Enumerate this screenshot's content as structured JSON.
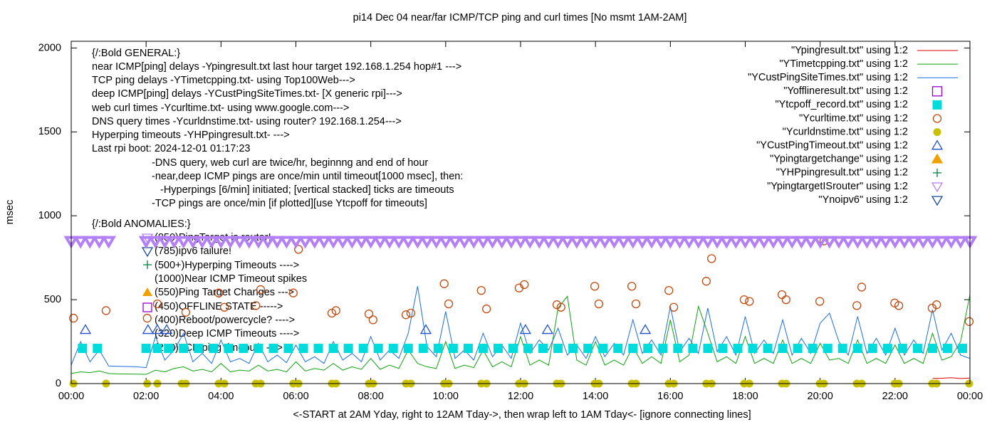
{
  "chart_data": {
    "type": "line",
    "title": "pi14 Dec 04  near/far ICMP/TCP ping and curl times [No msmt 1AM-2AM]",
    "x_label": "<-START at 2AM Yday, right to 12AM Tday->, then wrap left to 1AM Tday<- [ignore connecting lines]",
    "y_label": "msec",
    "xlim": [
      0,
      24
    ],
    "ylim": [
      0,
      2040
    ],
    "xticks": [
      {
        "value": 0,
        "label": "00:00"
      },
      {
        "value": 2,
        "label": "02:00"
      },
      {
        "value": 4,
        "label": "04:00"
      },
      {
        "value": 6,
        "label": "06:00"
      },
      {
        "value": 8,
        "label": "08:00"
      },
      {
        "value": 10,
        "label": "10:00"
      },
      {
        "value": 12,
        "label": "12:00"
      },
      {
        "value": 14,
        "label": "14:00"
      },
      {
        "value": 16,
        "label": "16:00"
      },
      {
        "value": 18,
        "label": "18:00"
      },
      {
        "value": 20,
        "label": "20:00"
      },
      {
        "value": 22,
        "label": "22:00"
      },
      {
        "value": 24,
        "label": "00:00"
      }
    ],
    "yticks": [
      0,
      500,
      1000,
      1500,
      2000
    ],
    "grid": false,
    "legend": "top-right",
    "annotations": [
      "{/:Bold GENERAL:}",
      "near ICMP[ping] delays -Ypingresult.txt last hour target 192.168.1.254 hop#1 --->",
      "TCP ping delays -YTimetcpping.txt- using Top100Web--->",
      "deep ICMP[ping] delays -YCustPingSiteTimes.txt- [X generic rpi]--->",
      "web curl times -Ycurltime.txt- using www.google.com--->",
      "DNS query times -Ycurldnstime.txt- using router? 192.168.1.254--->",
      "Hyperping timeouts -YHPpingresult.txt- --->",
      "Last rpi boot: 2024-12-01 01:17:23",
      "-DNS query, web curl are twice/hr, beginnng and end of hour",
      "-near,deep ICMP pings are once/min until timeout[1000 msec], then:",
      "-Hyperpings [6/min] initiated; [vertical stacked] ticks are timeouts",
      "-TCP pings are once/min [if plotted][use Ytcpoff for timeouts]",
      "{/:Bold ANOMALIES:}",
      "(850)PingTarget is router!",
      "(785)ipv6 failure!",
      "(500+)Hyperping Timeouts ---->",
      "(1000)Near ICMP Timeout spikes",
      "(550)Ping Target Changes --->",
      "(450)OFFLINE STATE ----->",
      "(400)Reboot/powercycle? ---->",
      "(320)Deep ICMP Timeouts ---->",
      "(220)TCP ping timeouts --->"
    ],
    "series": [
      {
        "name": "\"Ypingresult.txt\" using 1:2",
        "color": "#e00000",
        "style": "line",
        "x": [
          23,
          23.25,
          23.5,
          23.75,
          24
        ],
        "values": [
          30,
          32,
          35,
          30,
          33
        ]
      },
      {
        "name": "\"YTimetcpping.txt\" using 1:2",
        "color": "#10a010",
        "style": "line",
        "x": [
          0,
          0.25,
          0.5,
          0.75,
          1,
          1.25,
          1.5,
          1.75,
          2,
          2.25,
          2.5,
          2.75,
          3,
          3.25,
          3.5,
          3.75,
          4,
          4.25,
          4.5,
          4.75,
          5,
          5.25,
          5.5,
          5.75,
          6,
          6.25,
          6.5,
          6.75,
          7,
          7.25,
          7.5,
          7.75,
          8,
          8.25,
          8.5,
          8.75,
          9,
          9.25,
          9.5,
          9.75,
          10,
          10.25,
          10.5,
          10.75,
          11,
          11.25,
          11.5,
          11.75,
          12,
          12.25,
          12.5,
          12.75,
          13,
          13.25,
          13.5,
          13.75,
          14,
          14.25,
          14.5,
          14.75,
          15,
          15.25,
          15.5,
          15.75,
          16,
          16.25,
          16.5,
          16.75,
          17,
          17.25,
          17.5,
          17.75,
          18,
          18.25,
          18.5,
          18.75,
          19,
          19.25,
          19.5,
          19.75,
          20,
          20.25,
          20.5,
          20.75,
          21,
          21.25,
          21.5,
          21.75,
          22,
          22.25,
          22.5,
          22.75,
          23,
          23.25,
          23.5,
          23.75,
          24
        ],
        "values": [
          60,
          70,
          65,
          75,
          60,
          58,
          57,
          56,
          55,
          80,
          70,
          90,
          100,
          75,
          85,
          70,
          120,
          70,
          80,
          75,
          110,
          75,
          85,
          70,
          130,
          75,
          90,
          80,
          120,
          80,
          100,
          85,
          150,
          85,
          110,
          90,
          200,
          120,
          100,
          90,
          250,
          90,
          110,
          95,
          200,
          100,
          130,
          100,
          280,
          110,
          140,
          110,
          450,
          520,
          140,
          110,
          250,
          110,
          140,
          110,
          220,
          120,
          160,
          120,
          380,
          130,
          170,
          460,
          300,
          130,
          160,
          120,
          280,
          120,
          150,
          120,
          260,
          120,
          150,
          120,
          240,
          140,
          150,
          120,
          260,
          120,
          150,
          120,
          230,
          120,
          150,
          120,
          300,
          140,
          160,
          250,
          530
        ]
      },
      {
        "name": "\"YCustPingSiteTimes.txt\" using 1:2",
        "color": "#1a6ee0",
        "style": "line",
        "x": [
          0,
          0.25,
          0.5,
          0.75,
          1,
          1.25,
          1.5,
          1.75,
          2,
          2.25,
          2.5,
          2.75,
          3,
          3.25,
          3.5,
          3.75,
          4,
          4.25,
          4.5,
          4.75,
          5,
          5.25,
          5.5,
          5.75,
          6,
          6.25,
          6.5,
          6.75,
          7,
          7.25,
          7.5,
          7.75,
          8,
          8.25,
          8.5,
          8.75,
          9,
          9.25,
          9.5,
          9.75,
          10,
          10.25,
          10.5,
          10.75,
          11,
          11.25,
          11.5,
          11.75,
          12,
          12.25,
          12.5,
          12.75,
          13,
          13.25,
          13.5,
          13.75,
          14,
          14.25,
          14.5,
          14.75,
          15,
          15.25,
          15.5,
          15.75,
          16,
          16.25,
          16.5,
          16.75,
          17,
          17.25,
          17.5,
          17.75,
          18,
          18.25,
          18.5,
          18.75,
          19,
          19.25,
          19.5,
          19.75,
          20,
          20.25,
          20.5,
          20.75,
          21,
          21.25,
          21.5,
          21.75,
          22,
          22.25,
          22.5,
          22.75,
          23,
          23.25,
          23.5,
          23.75,
          24
        ],
        "values": [
          110,
          250,
          130,
          200,
          105,
          103,
          102,
          100,
          95,
          280,
          140,
          200,
          300,
          130,
          180,
          120,
          260,
          130,
          150,
          120,
          240,
          130,
          170,
          125,
          230,
          130,
          160,
          120,
          250,
          140,
          180,
          130,
          280,
          140,
          200,
          150,
          300,
          580,
          220,
          160,
          430,
          150,
          200,
          140,
          300,
          160,
          230,
          150,
          360,
          180,
          260,
          200,
          330,
          170,
          230,
          150,
          280,
          160,
          240,
          170,
          380,
          180,
          260,
          170,
          460,
          190,
          270,
          180,
          450,
          190,
          280,
          170,
          400,
          180,
          260,
          180,
          380,
          170,
          270,
          180,
          360,
          420,
          250,
          170,
          400,
          180,
          270,
          170,
          330,
          170,
          260,
          180,
          440,
          200,
          300,
          170,
          150
        ]
      },
      {
        "name": "\"Yofflineresult.txt\" using 1:2",
        "color": "#9400d3",
        "style": "square-open",
        "x": [],
        "values": []
      },
      {
        "name": "\"Ytcpoff_record.txt\" using 1:2",
        "color": "#00dcdc",
        "style": "square",
        "x": [
          0.3,
          0.7,
          2,
          2.3,
          2.6,
          3,
          3.4,
          3.8,
          4.2,
          4.6,
          5,
          5.4,
          5.8,
          6.2,
          6.6,
          7,
          7.4,
          7.8,
          8.2,
          8.6,
          9,
          9.4,
          9.8,
          10.2,
          10.6,
          11,
          11.4,
          11.8,
          12.2,
          12.6,
          13,
          13.4,
          13.8,
          14.2,
          14.6,
          15,
          15.4,
          15.8,
          16.2,
          16.6,
          17,
          17.4,
          17.8,
          18.2,
          18.6,
          19,
          19.4,
          19.8,
          20.2,
          20.6,
          21,
          21.4,
          21.8,
          22.2,
          22.6,
          23,
          23.4,
          23.8
        ],
        "values": [
          210,
          210,
          210,
          210,
          210,
          210,
          210,
          210,
          210,
          210,
          210,
          210,
          210,
          210,
          210,
          210,
          210,
          210,
          210,
          210,
          210,
          210,
          210,
          210,
          210,
          210,
          210,
          210,
          210,
          210,
          210,
          210,
          210,
          210,
          210,
          210,
          210,
          210,
          210,
          210,
          210,
          210,
          210,
          210,
          210,
          210,
          210,
          210,
          210,
          210,
          210,
          210,
          210,
          210,
          210,
          210,
          210,
          210
        ]
      },
      {
        "name": "\"Ycurltime.txt\" using 1:2",
        "color": "#c04a10",
        "style": "circle-open",
        "x": [
          0.06,
          0.93,
          2.03,
          2.3,
          3.06,
          3.94,
          4.09,
          4.93,
          5.06,
          5.93,
          6.07,
          6.96,
          7.07,
          7.95,
          8.06,
          8.94,
          9.07,
          9.96,
          10.08,
          10.95,
          11.09,
          11.96,
          12.1,
          12.97,
          13.08,
          13.98,
          14.09,
          14.97,
          15.08,
          15.96,
          16.09,
          16.96,
          17.1,
          17.97,
          18.11,
          18.98,
          19.09,
          19.99,
          20.1,
          20.98,
          21.11,
          21.99,
          22.1,
          22.99,
          23.11,
          23.98
        ],
        "values": [
          390,
          435,
          390,
          475,
          425,
          540,
          455,
          465,
          560,
          540,
          800,
          420,
          435,
          415,
          380,
          410,
          420,
          595,
          475,
          555,
          445,
          570,
          590,
          470,
          455,
          580,
          475,
          580,
          475,
          555,
          455,
          610,
          745,
          500,
          490,
          530,
          500,
          490,
          850,
          465,
          575,
          480,
          465,
          450,
          470,
          370
        ]
      },
      {
        "name": "\"Ycurldnstime.txt\" using 1:2",
        "color": "#c8c000",
        "style": "circle",
        "x": [
          0.06,
          0.93,
          2.03,
          2.3,
          2.95,
          3.06,
          3.94,
          4.09,
          4.93,
          5.06,
          5.93,
          6.07,
          6.96,
          7.07,
          7.95,
          8.06,
          8.94,
          9.07,
          9.96,
          10.08,
          10.95,
          11.09,
          11.96,
          12.1,
          12.97,
          13.08,
          13.98,
          14.09,
          14.97,
          15.08,
          15.96,
          16.09,
          16.96,
          17.1,
          17.97,
          18.11,
          18.98,
          19.09,
          19.99,
          20.1,
          20.98,
          21.11,
          21.99,
          22.1,
          22.99,
          23.11,
          23.98
        ],
        "values": [
          0,
          0,
          0,
          0,
          0,
          0,
          0,
          0,
          0,
          0,
          0,
          0,
          0,
          0,
          0,
          0,
          0,
          0,
          0,
          0,
          0,
          0,
          0,
          0,
          0,
          0,
          0,
          0,
          0,
          0,
          0,
          0,
          0,
          0,
          0,
          0,
          0,
          0,
          0,
          0,
          0,
          0,
          0,
          0,
          0,
          0,
          0
        ]
      },
      {
        "name": "\"YCustPingTimeout.txt\" using 1:2",
        "color": "#2050d0",
        "style": "triangle-open",
        "x": [
          0.38,
          2.05,
          2.3,
          2.55,
          9.47,
          12.13,
          12.72,
          15.33
        ],
        "values": [
          320,
          320,
          320,
          320,
          320,
          320,
          320,
          320
        ]
      },
      {
        "name": "\"Ypingtargetchange\" using 1:2",
        "color": "#f0a000",
        "style": "triangle",
        "x": [],
        "values": []
      },
      {
        "name": "\"YHPpingresult.txt\" using 1:2",
        "color": "#008040",
        "style": "plus",
        "x": [],
        "values": []
      },
      {
        "name": "\"YpingtargetISrouter\" using 1:2",
        "color": "#b380f5",
        "style": "triangle-down-open",
        "x": [
          0,
          0.25,
          0.5,
          0.75,
          1,
          2,
          2.25,
          2.5,
          2.75,
          3,
          3.25,
          3.5,
          3.75,
          4,
          4.25,
          4.5,
          4.75,
          5,
          5.25,
          5.5,
          5.75,
          6,
          6.25,
          6.5,
          6.75,
          7,
          7.25,
          7.5,
          7.75,
          8,
          8.25,
          8.5,
          8.75,
          9,
          9.25,
          9.5,
          9.75,
          10,
          10.25,
          10.5,
          10.75,
          11,
          11.25,
          11.5,
          11.75,
          12,
          12.25,
          12.5,
          12.75,
          13,
          13.25,
          13.5,
          13.75,
          14,
          14.25,
          14.5,
          14.75,
          15,
          15.25,
          15.5,
          15.75,
          16,
          16.25,
          16.5,
          16.75,
          17,
          17.25,
          17.5,
          17.75,
          18,
          18.25,
          18.5,
          18.75,
          19,
          19.25,
          19.5,
          19.75,
          20,
          20.25,
          20.5,
          20.75,
          21,
          21.25,
          21.5,
          21.75,
          22,
          22.25,
          22.5,
          22.75,
          23,
          23.25,
          23.5,
          23.75,
          24
        ],
        "values": [
          850,
          850,
          850,
          850,
          850,
          850,
          850,
          850,
          850,
          850,
          850,
          850,
          850,
          850,
          850,
          850,
          850,
          850,
          850,
          850,
          850,
          850,
          850,
          850,
          850,
          850,
          850,
          850,
          850,
          850,
          850,
          850,
          850,
          850,
          850,
          850,
          850,
          850,
          850,
          850,
          850,
          850,
          850,
          850,
          850,
          850,
          850,
          850,
          850,
          850,
          850,
          850,
          850,
          850,
          850,
          850,
          850,
          850,
          850,
          850,
          850,
          850,
          850,
          850,
          850,
          850,
          850,
          850,
          850,
          850,
          850,
          850,
          850,
          850,
          850,
          850,
          850,
          850,
          850,
          850,
          850,
          850,
          850,
          850,
          850,
          850,
          850,
          850,
          850,
          850,
          850,
          850,
          850,
          850
        ]
      },
      {
        "name": "\"Ynoipv6\" using 1:2",
        "color": "#184a90",
        "style": "triangle-down-open",
        "x": [],
        "values": []
      }
    ]
  }
}
